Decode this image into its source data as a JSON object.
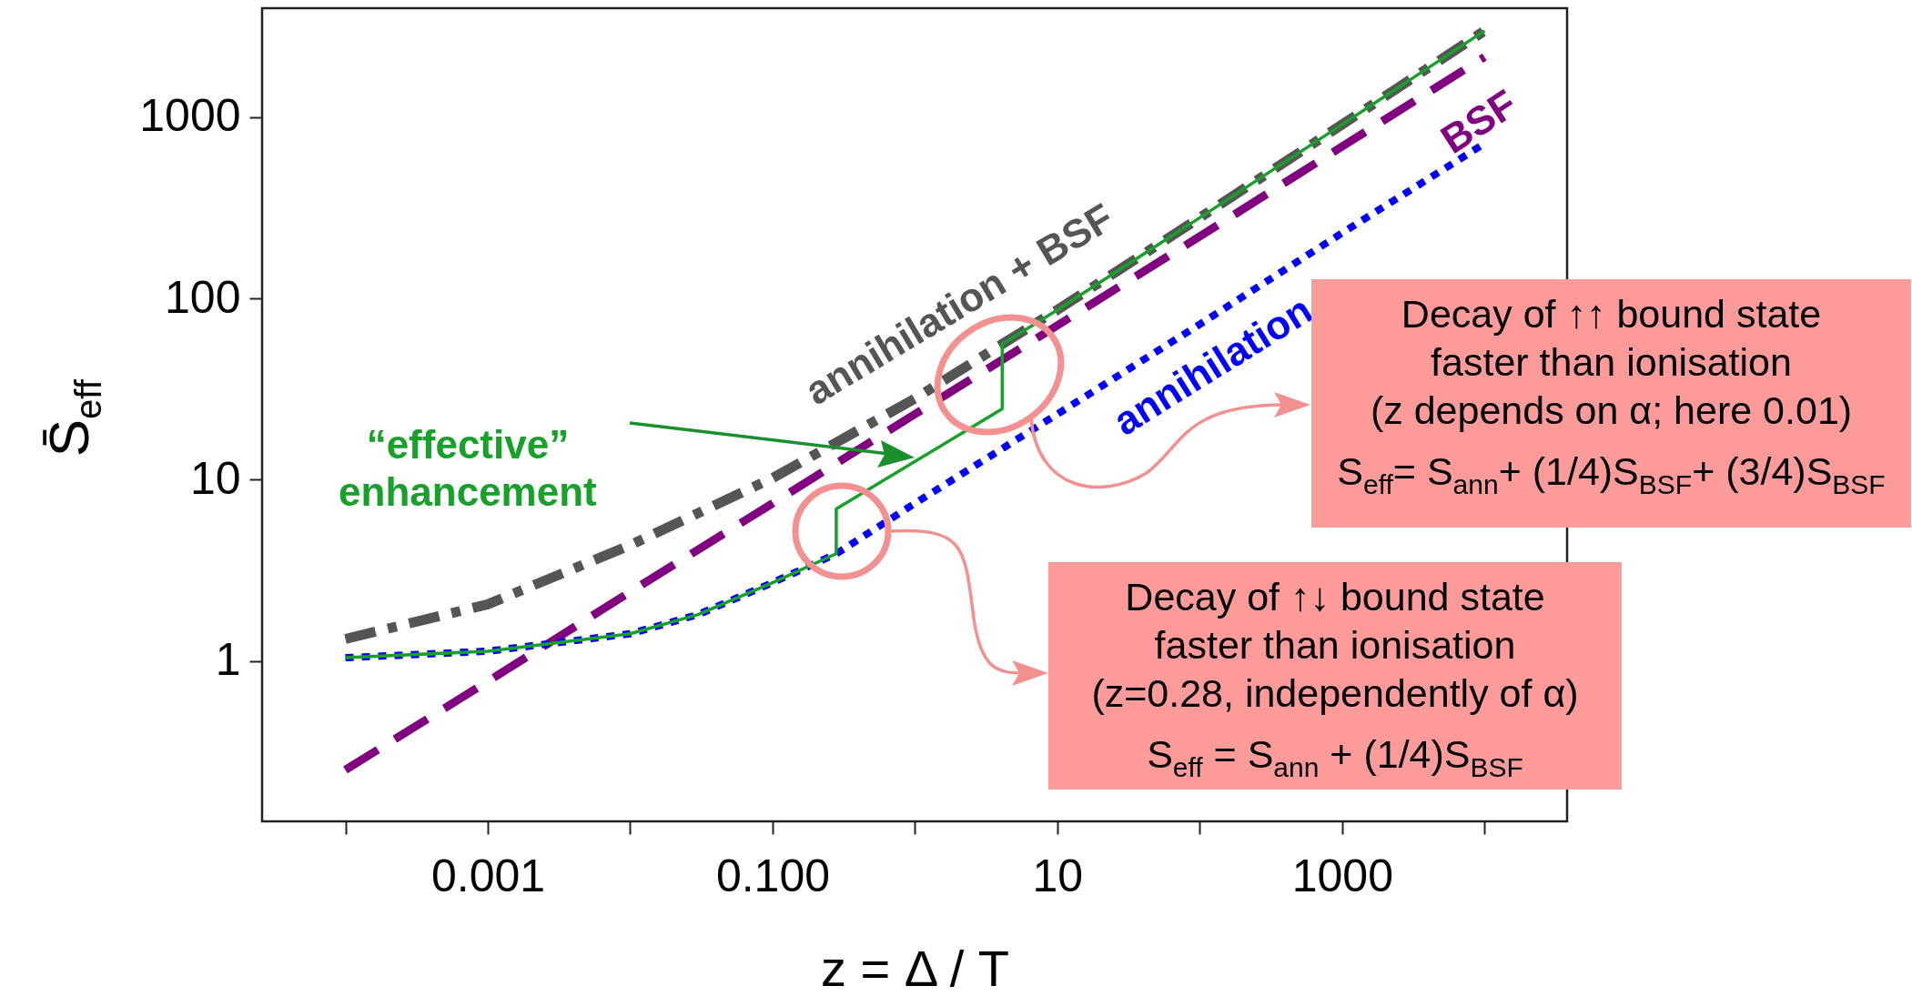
{
  "chart_data": {
    "type": "line",
    "xlabel": "z = Δ / T",
    "ylabel": "S̄$_{eff}$",
    "log": "xy",
    "xlim": [
      2.6e-05,
      38000
    ],
    "ylim": [
      0.13,
      4000
    ],
    "xticks": [
      {
        "value": 0.0001,
        "label": null
      },
      0.001,
      {
        "value": 0.01,
        "label": null
      },
      {
        "value": 0.1,
        "label": "0.100"
      },
      {
        "value": 1,
        "label": null
      },
      10,
      {
        "value": 100,
        "label": null
      },
      1000,
      {
        "value": 10000,
        "label": null
      }
    ],
    "yticks": [
      1,
      10,
      100,
      1000
    ],
    "series": [
      {
        "name": "annihilation + BSF",
        "color": "#555555",
        "line_style": "dashdot",
        "x": [
          0.0001,
          0.001,
          0.01,
          0.1,
          1,
          4.1,
          10,
          100,
          1000,
          10000
        ],
        "values": [
          1.32,
          2.05,
          4.35,
          10.2,
          28,
          56,
          86.5,
          279,
          912,
          3000
        ]
      },
      {
        "name": "BSF",
        "color": "#800080",
        "line_style": "dashed",
        "x": [
          0.0001,
          0.001,
          0.01,
          0.1,
          1,
          10,
          100,
          1000,
          10000
        ],
        "values": [
          0.25,
          0.77,
          2.4,
          7.4,
          23,
          71,
          220,
          690,
          2150
        ]
      },
      {
        "name": "annihilation",
        "color": "#0000ff",
        "line_style": "dotted",
        "x": [
          0.0001,
          0.001,
          0.01,
          0.03,
          0.1,
          0.28,
          1,
          10,
          100,
          1000,
          10000
        ],
        "values": [
          1.04,
          1.13,
          1.41,
          1.8,
          2.7,
          3.9,
          7.4,
          23,
          72,
          230,
          716
        ]
      },
      {
        "name": "“effective”\nenhancement",
        "color": "#17a02a",
        "line_style": "solid",
        "x": [
          0.0001,
          0.001,
          0.01,
          0.03,
          0.1,
          0.28,
          0.28,
          1,
          4.1,
          4.1,
          10,
          100,
          1000,
          10000
        ],
        "values": [
          1.04,
          1.13,
          1.41,
          1.8,
          2.7,
          3.9,
          6.9,
          12.6,
          24.6,
          56,
          86.5,
          279,
          912,
          3000
        ]
      }
    ],
    "annotations": [
      "Decay of  ↑↑ bound state\nfaster than ionisation\n(z depends on α; here 0.01)\nS$_{eff}$= S$_{ann}$+ (1/4)S$_{BSF}$+ (3/4)S$_{BSF}$",
      "Decay of  ↑↓ bound state\nfaster than ionisation\n(z=0.28, independently of α)\nS$_{eff}$ = S$_{ann}$ + (1/4)S$_{BSF}$"
    ]
  }
}
